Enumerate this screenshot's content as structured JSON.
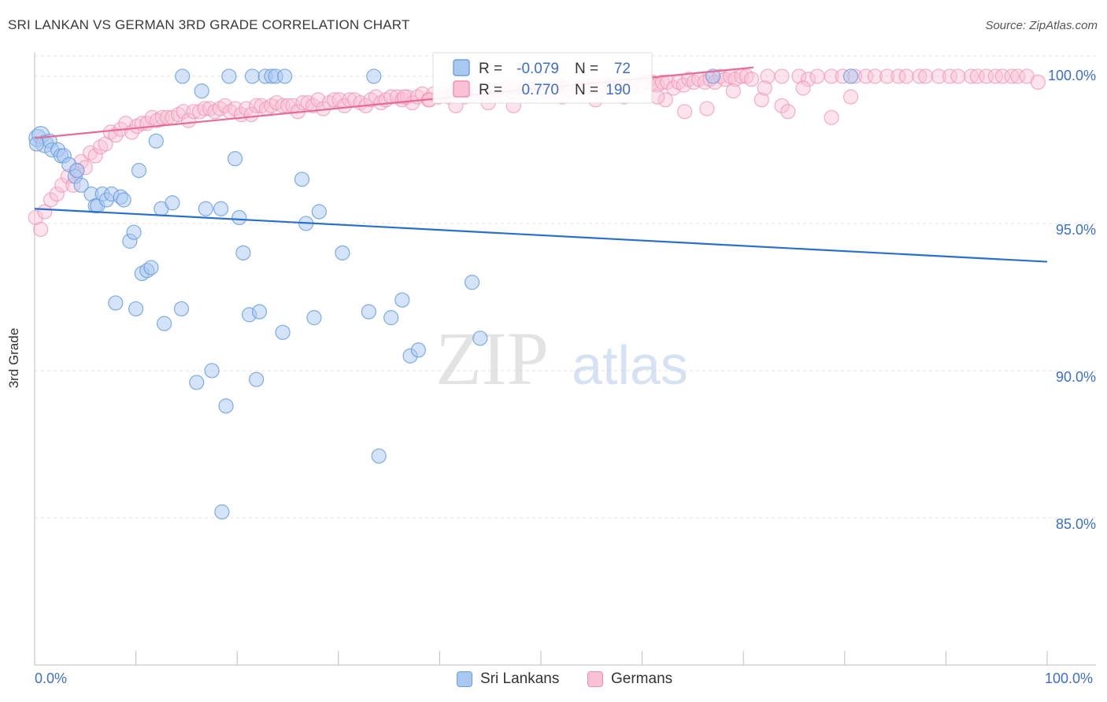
{
  "title": "SRI LANKAN VS GERMAN 3RD GRADE CORRELATION CHART",
  "source": "Source: ZipAtlas.com",
  "watermark": {
    "zip": "ZIP",
    "atlas": "atlas"
  },
  "colors": {
    "blue": "#6a9fe0",
    "blue_fill": "#a9c8f0",
    "blue_line": "#2a6fd0",
    "pink": "#f08fb0",
    "pink_fill": "#f8c2d4",
    "pink_line": "#e86a96",
    "tick_label": "#3b6fc9",
    "grid": "#e3e3e3"
  },
  "chart_data": {
    "type": "scatter",
    "title": "SRI LANKAN VS GERMAN 3RD GRADE CORRELATION CHART",
    "ylabel": "3rd Grade",
    "xlabel": "",
    "xlim": [
      0,
      100
    ],
    "ylim": [
      80.0,
      100.8
    ],
    "x_tick_labels": [
      "0.0%",
      "100.0%"
    ],
    "y_ticks": [
      85.0,
      90.0,
      95.0,
      100.0
    ],
    "y_tick_labels": [
      "85.0%",
      "90.0%",
      "95.0%",
      "100.0%"
    ],
    "grid": true,
    "legend_position": "top-center",
    "series": [
      {
        "name": "Sri Lankans",
        "R": "-0.079",
        "N": "72",
        "trend": {
          "x": [
            0,
            100
          ],
          "y": [
            95.5,
            93.7
          ]
        },
        "points": [
          [
            0.3,
            97.9
          ],
          [
            0.6,
            98.0
          ],
          [
            1.0,
            97.7
          ],
          [
            1.5,
            97.8
          ],
          [
            1.7,
            97.5
          ],
          [
            2.3,
            97.5
          ],
          [
            2.6,
            97.3
          ],
          [
            2.9,
            97.3
          ],
          [
            3.4,
            97.0
          ],
          [
            4.0,
            96.6
          ],
          [
            4.2,
            96.8
          ],
          [
            4.6,
            96.3
          ],
          [
            5.6,
            96.0
          ],
          [
            6.0,
            95.6
          ],
          [
            6.2,
            95.6
          ],
          [
            6.7,
            96.0
          ],
          [
            7.1,
            95.8
          ],
          [
            7.6,
            96.0
          ],
          [
            8.5,
            95.9
          ],
          [
            8.8,
            95.8
          ],
          [
            9.4,
            94.4
          ],
          [
            9.8,
            94.7
          ],
          [
            10.6,
            93.3
          ],
          [
            11.1,
            93.4
          ],
          [
            11.5,
            93.5
          ],
          [
            10.3,
            96.8
          ],
          [
            12.0,
            97.8
          ],
          [
            12.5,
            95.5
          ],
          [
            13.6,
            95.7
          ],
          [
            14.5,
            92.1
          ],
          [
            8.0,
            92.3
          ],
          [
            10.0,
            92.1
          ],
          [
            12.8,
            91.6
          ],
          [
            14.6,
            100.0
          ],
          [
            16.5,
            99.5
          ],
          [
            16.0,
            89.6
          ],
          [
            16.9,
            95.5
          ],
          [
            17.5,
            90.0
          ],
          [
            18.4,
            95.5
          ],
          [
            18.5,
            85.2
          ],
          [
            18.9,
            88.8
          ],
          [
            19.2,
            100.0
          ],
          [
            19.8,
            97.2
          ],
          [
            20.6,
            94.0
          ],
          [
            20.2,
            95.2
          ],
          [
            21.2,
            91.9
          ],
          [
            21.5,
            100.0
          ],
          [
            21.9,
            89.7
          ],
          [
            22.2,
            92.0
          ],
          [
            22.8,
            100.0
          ],
          [
            23.4,
            100.0
          ],
          [
            23.8,
            100.0
          ],
          [
            24.5,
            91.3
          ],
          [
            24.7,
            100.0
          ],
          [
            26.4,
            96.5
          ],
          [
            26.8,
            95.0
          ],
          [
            27.6,
            91.8
          ],
          [
            28.1,
            95.4
          ],
          [
            30.4,
            94.0
          ],
          [
            33.0,
            92.0
          ],
          [
            33.5,
            100.0
          ],
          [
            34.0,
            87.1
          ],
          [
            35.2,
            91.8
          ],
          [
            36.3,
            92.4
          ],
          [
            37.1,
            90.5
          ],
          [
            37.9,
            90.7
          ],
          [
            43.2,
            93.0
          ],
          [
            44.0,
            91.1
          ],
          [
            48.9,
            100.0
          ],
          [
            67.0,
            100.0
          ],
          [
            80.6,
            100.0
          ],
          [
            0.2,
            97.7
          ]
        ]
      },
      {
        "name": "Germans",
        "R": "0.770",
        "N": "190",
        "trend": {
          "x": [
            0,
            71
          ],
          "y": [
            97.9,
            100.3
          ]
        },
        "points": [
          [
            0.1,
            95.2
          ],
          [
            0.6,
            94.8
          ],
          [
            1.0,
            95.4
          ],
          [
            1.6,
            95.8
          ],
          [
            2.2,
            96.0
          ],
          [
            2.7,
            96.3
          ],
          [
            3.3,
            96.6
          ],
          [
            3.8,
            96.3
          ],
          [
            4.1,
            96.8
          ],
          [
            4.6,
            97.1
          ],
          [
            5.0,
            96.9
          ],
          [
            5.5,
            97.4
          ],
          [
            6.0,
            97.3
          ],
          [
            6.5,
            97.6
          ],
          [
            7.0,
            97.7
          ],
          [
            7.5,
            98.1
          ],
          [
            8.0,
            98.0
          ],
          [
            8.5,
            98.2
          ],
          [
            9.0,
            98.4
          ],
          [
            9.6,
            98.1
          ],
          [
            10.1,
            98.3
          ],
          [
            10.6,
            98.4
          ],
          [
            11.1,
            98.4
          ],
          [
            11.6,
            98.6
          ],
          [
            12.1,
            98.5
          ],
          [
            12.6,
            98.6
          ],
          [
            13.1,
            98.6
          ],
          [
            13.6,
            98.6
          ],
          [
            14.2,
            98.7
          ],
          [
            14.7,
            98.8
          ],
          [
            15.2,
            98.5
          ],
          [
            15.7,
            98.8
          ],
          [
            16.3,
            98.8
          ],
          [
            16.8,
            98.9
          ],
          [
            17.3,
            98.9
          ],
          [
            17.8,
            98.8
          ],
          [
            18.3,
            98.9
          ],
          [
            18.8,
            99.0
          ],
          [
            19.3,
            98.8
          ],
          [
            19.8,
            98.9
          ],
          [
            20.4,
            98.7
          ],
          [
            20.9,
            98.9
          ],
          [
            21.4,
            98.7
          ],
          [
            21.9,
            99.0
          ],
          [
            22.4,
            99.0
          ],
          [
            22.9,
            98.9
          ],
          [
            23.4,
            99.0
          ],
          [
            23.9,
            99.1
          ],
          [
            24.5,
            99.0
          ],
          [
            25.0,
            99.0
          ],
          [
            25.5,
            99.0
          ],
          [
            26.0,
            98.8
          ],
          [
            26.5,
            99.1
          ],
          [
            27.0,
            99.1
          ],
          [
            27.5,
            99.0
          ],
          [
            28.0,
            99.2
          ],
          [
            28.5,
            98.9
          ],
          [
            29.1,
            99.1
          ],
          [
            29.6,
            99.2
          ],
          [
            30.1,
            99.2
          ],
          [
            30.6,
            99.0
          ],
          [
            31.1,
            99.2
          ],
          [
            31.6,
            99.2
          ],
          [
            32.2,
            99.1
          ],
          [
            32.7,
            99.0
          ],
          [
            33.2,
            99.2
          ],
          [
            33.7,
            99.3
          ],
          [
            34.2,
            99.1
          ],
          [
            34.7,
            99.2
          ],
          [
            35.2,
            99.3
          ],
          [
            35.8,
            99.3
          ],
          [
            36.3,
            99.2
          ],
          [
            36.8,
            99.3
          ],
          [
            37.3,
            99.1
          ],
          [
            37.8,
            99.3
          ],
          [
            38.3,
            99.4
          ],
          [
            38.9,
            99.2
          ],
          [
            39.4,
            99.4
          ],
          [
            39.9,
            99.3
          ],
          [
            40.4,
            99.4
          ],
          [
            40.9,
            99.3
          ],
          [
            41.4,
            99.5
          ],
          [
            41.9,
            99.4
          ],
          [
            42.5,
            99.3
          ],
          [
            43.0,
            99.5
          ],
          [
            43.5,
            99.4
          ],
          [
            44.0,
            99.5
          ],
          [
            44.5,
            99.4
          ],
          [
            45.0,
            99.5
          ],
          [
            45.6,
            99.5
          ],
          [
            46.1,
            99.4
          ],
          [
            46.6,
            99.6
          ],
          [
            47.1,
            99.5
          ],
          [
            47.6,
            99.6
          ],
          [
            48.1,
            99.5
          ],
          [
            48.6,
            99.6
          ],
          [
            49.2,
            99.4
          ],
          [
            49.7,
            99.6
          ],
          [
            50.2,
            99.6
          ],
          [
            50.7,
            99.5
          ],
          [
            51.2,
            99.6
          ],
          [
            51.7,
            99.7
          ],
          [
            52.2,
            99.6
          ],
          [
            52.8,
            99.5
          ],
          [
            53.3,
            99.7
          ],
          [
            53.8,
            99.6
          ],
          [
            54.3,
            99.6
          ],
          [
            54.8,
            99.7
          ],
          [
            55.3,
            99.7
          ],
          [
            55.9,
            99.5
          ],
          [
            56.4,
            99.7
          ],
          [
            56.9,
            99.7
          ],
          [
            57.4,
            99.6
          ],
          [
            57.9,
            99.8
          ],
          [
            58.4,
            99.7
          ],
          [
            58.9,
            99.6
          ],
          [
            59.5,
            99.8
          ],
          [
            60.0,
            99.7
          ],
          [
            60.5,
            99.8
          ],
          [
            61.0,
            99.8
          ],
          [
            61.5,
            99.7
          ],
          [
            62.0,
            99.8
          ],
          [
            62.5,
            99.8
          ],
          [
            63.1,
            99.6
          ],
          [
            63.6,
            99.8
          ],
          [
            64.1,
            99.7
          ],
          [
            64.6,
            99.9
          ],
          [
            65.1,
            99.8
          ],
          [
            65.6,
            99.9
          ],
          [
            66.2,
            99.8
          ],
          [
            66.7,
            99.9
          ],
          [
            67.2,
            99.8
          ],
          [
            67.7,
            100.0
          ],
          [
            68.2,
            99.9
          ],
          [
            68.7,
            100.0
          ],
          [
            69.2,
            99.9
          ],
          [
            69.8,
            100.0
          ],
          [
            70.3,
            100.0
          ],
          [
            70.8,
            99.9
          ],
          [
            72.4,
            100.0
          ],
          [
            73.8,
            100.0
          ],
          [
            75.5,
            100.0
          ],
          [
            76.4,
            99.9
          ],
          [
            77.3,
            100.0
          ],
          [
            78.7,
            100.0
          ],
          [
            79.8,
            100.0
          ],
          [
            81.0,
            100.0
          ],
          [
            82.1,
            100.0
          ],
          [
            83.0,
            100.0
          ],
          [
            84.2,
            100.0
          ],
          [
            85.3,
            100.0
          ],
          [
            86.1,
            100.0
          ],
          [
            87.4,
            100.0
          ],
          [
            88.0,
            100.0
          ],
          [
            89.3,
            100.0
          ],
          [
            90.4,
            100.0
          ],
          [
            91.2,
            100.0
          ],
          [
            92.5,
            100.0
          ],
          [
            93.1,
            100.0
          ],
          [
            94.0,
            100.0
          ],
          [
            94.9,
            100.0
          ],
          [
            95.6,
            100.0
          ],
          [
            96.5,
            100.0
          ],
          [
            97.1,
            100.0
          ],
          [
            98.0,
            100.0
          ],
          [
            99.1,
            99.8
          ],
          [
            62.3,
            99.2
          ],
          [
            64.2,
            98.8
          ],
          [
            66.4,
            98.9
          ],
          [
            71.8,
            99.2
          ],
          [
            73.8,
            99.0
          ],
          [
            74.4,
            98.8
          ],
          [
            78.7,
            98.6
          ],
          [
            80.6,
            99.3
          ],
          [
            69.0,
            99.5
          ],
          [
            61.5,
            99.3
          ],
          [
            72.1,
            99.6
          ],
          [
            75.9,
            99.6
          ],
          [
            58.2,
            99.3
          ],
          [
            55.4,
            99.2
          ],
          [
            52.1,
            99.3
          ],
          [
            47.3,
            99.0
          ],
          [
            44.8,
            99.1
          ],
          [
            41.6,
            99.0
          ],
          [
            39.0,
            99.2
          ],
          [
            36.5,
            99.3
          ]
        ]
      }
    ]
  }
}
